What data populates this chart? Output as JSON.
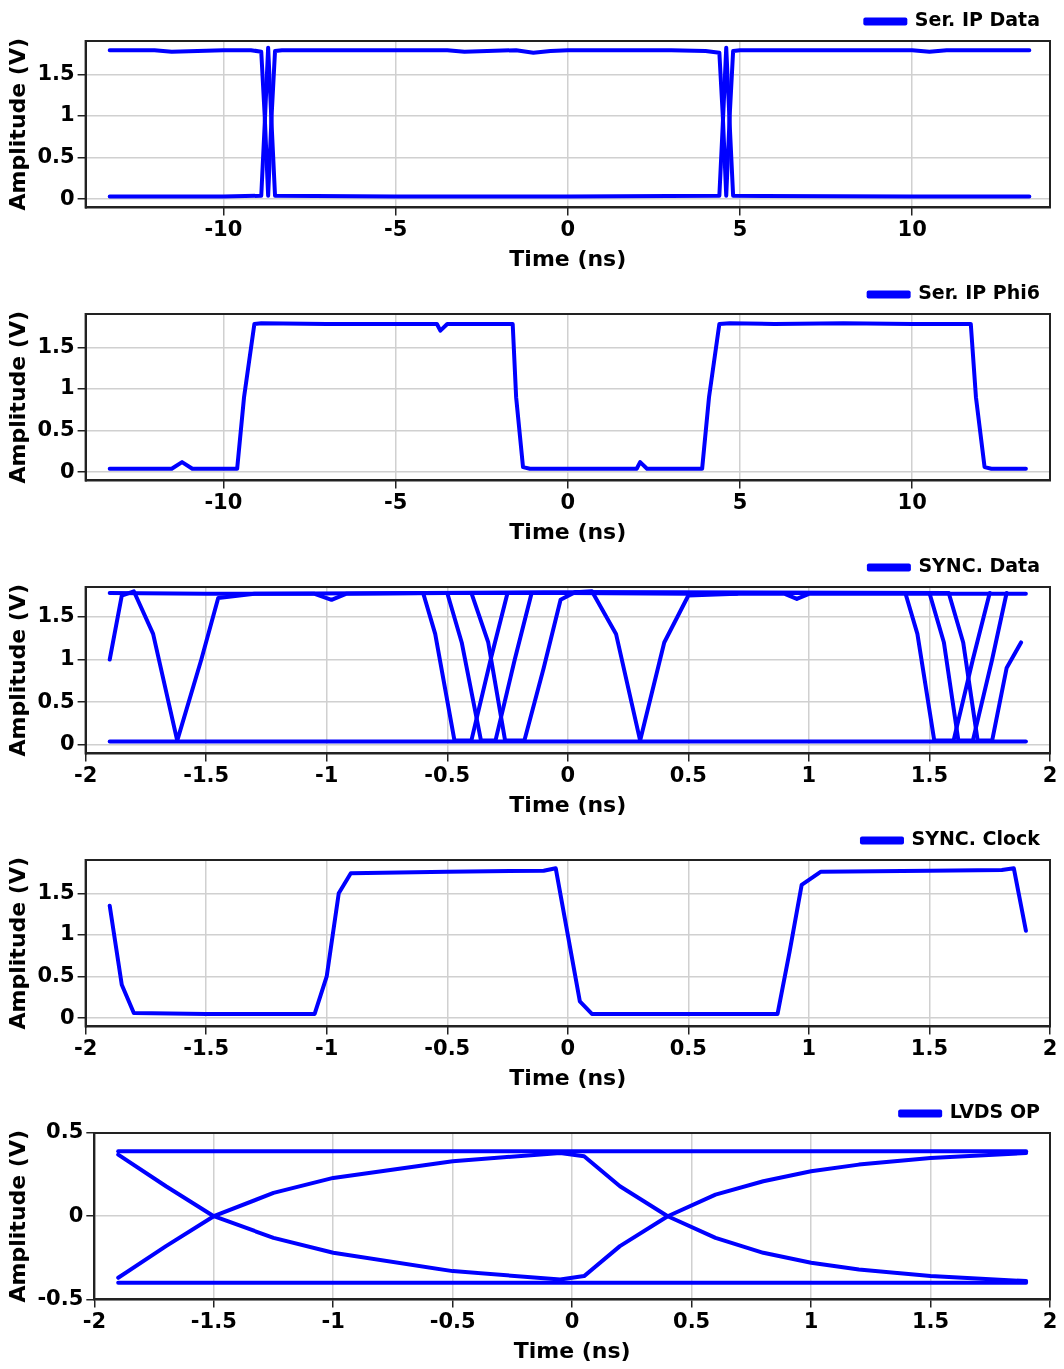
{
  "chart_data": [
    {
      "type": "line",
      "xlabel": "Time (ns)",
      "ylabel": "Amplitude (V)",
      "xlim": [
        -14,
        14
      ],
      "ylim": [
        -0.1,
        1.9
      ],
      "xticks": [
        -10,
        -5,
        0,
        5,
        10
      ],
      "yticks": [
        0,
        0.5,
        1,
        1.5
      ],
      "grid": true,
      "legend": "top right",
      "marker": "none",
      "line_style": "solid",
      "series": [
        {
          "name": "Ser. IP Data",
          "color": "#0000ff",
          "x": [
            -13.3,
            -12,
            -11.5,
            -10,
            -9.2,
            -8.9,
            -8.8,
            -8.7,
            -8.6,
            -8.5,
            -8.3,
            -5,
            -3.5,
            -3,
            -1.5,
            -1,
            -0.5,
            0,
            2,
            3,
            4,
            4.4,
            4.5,
            4.6,
            4.7,
            4.8,
            5,
            8,
            10,
            10.5,
            11,
            13.4
          ],
          "values": [
            1.79,
            1.79,
            1.77,
            1.79,
            1.79,
            1.77,
            1.0,
            0.04,
            1.0,
            1.78,
            1.79,
            1.79,
            1.79,
            1.77,
            1.79,
            1.76,
            1.78,
            1.79,
            1.79,
            1.79,
            1.78,
            1.76,
            1.0,
            0.04,
            1.0,
            1.78,
            1.79,
            1.79,
            1.79,
            1.77,
            1.79,
            1.79
          ]
        },
        {
          "color": "#0000ff",
          "x": [
            -13.3,
            -10,
            -8.9,
            -8.8,
            -8.7,
            -8.6,
            -8.5,
            -5,
            0,
            4.4,
            4.5,
            4.6,
            4.7,
            4.8,
            10,
            13.4
          ],
          "values": [
            0.03,
            0.03,
            0.04,
            0.9,
            1.82,
            0.9,
            0.04,
            0.03,
            0.03,
            0.04,
            0.9,
            1.82,
            0.9,
            0.04,
            0.03,
            0.03
          ]
        }
      ]
    },
    {
      "type": "line",
      "xlabel": "Time (ns)",
      "ylabel": "Amplitude (V)",
      "xlim": [
        -14,
        14
      ],
      "ylim": [
        -0.1,
        1.9
      ],
      "xticks": [
        -10,
        -5,
        0,
        5,
        10
      ],
      "yticks": [
        0,
        0.5,
        1,
        1.5
      ],
      "grid": true,
      "legend": "top right",
      "marker": "none",
      "line_style": "solid",
      "series": [
        {
          "name": "Ser. IP Phi6",
          "color": "#0000ff",
          "x": [
            -13.3,
            -11.5,
            -11.2,
            -10.9,
            -9.6,
            -9.4,
            -9.1,
            -8.9,
            -7,
            -5,
            -3.8,
            -3.7,
            -3.5,
            -1.6,
            -1.5,
            -1.3,
            -1.1,
            0,
            2,
            2.1,
            2.3,
            3.9,
            4.1,
            4.4,
            4.7,
            6,
            8,
            10,
            11.7,
            11.85,
            12.1,
            12.3,
            13.3
          ],
          "values": [
            0.04,
            0.04,
            0.12,
            0.04,
            0.04,
            0.9,
            1.78,
            1.79,
            1.78,
            1.78,
            1.78,
            1.7,
            1.78,
            1.78,
            0.9,
            0.06,
            0.04,
            0.04,
            0.04,
            0.12,
            0.04,
            0.04,
            0.9,
            1.78,
            1.79,
            1.78,
            1.79,
            1.78,
            1.78,
            0.9,
            0.06,
            0.04,
            0.04
          ]
        }
      ]
    },
    {
      "type": "line",
      "xlabel": "Time (ns)",
      "ylabel": "Amplitude (V)",
      "xlim": [
        -2,
        2
      ],
      "ylim": [
        -0.1,
        1.85
      ],
      "xticks": [
        -2,
        -1.5,
        -1,
        -0.5,
        0,
        0.5,
        1,
        1.5,
        2
      ],
      "yticks": [
        0,
        0.5,
        1,
        1.5
      ],
      "grid": true,
      "legend": "top right",
      "marker": "none",
      "line_style": "solid",
      "series": [
        {
          "name": "SYNC. Data",
          "color": "#0000ff",
          "x": [
            -1.9,
            -1.5,
            -1.05,
            -0.98,
            -0.92,
            -0.5,
            0,
            0.5,
            0.9,
            0.95,
            1.0,
            1.9
          ],
          "values": [
            1.78,
            1.77,
            1.77,
            1.7,
            1.77,
            1.78,
            1.78,
            1.77,
            1.77,
            1.71,
            1.77,
            1.77
          ]
        },
        {
          "color": "#0000ff",
          "x": [
            -1.9,
            -1,
            0,
            1,
            1.9
          ],
          "values": [
            0.04,
            0.04,
            0.04,
            0.04,
            0.04
          ]
        },
        {
          "color": "#0000ff",
          "x": [
            -1.9,
            -1.85,
            -1.8,
            -1.72,
            -1.62,
            -1.52,
            -1.45,
            -1.3,
            -0.6,
            0.05,
            0.1,
            0.2,
            0.3,
            0.4,
            0.5,
            0.7
          ],
          "values": [
            1.0,
            1.75,
            1.8,
            1.3,
            0.05,
            1.0,
            1.72,
            1.77,
            1.78,
            1.79,
            1.8,
            1.3,
            0.05,
            1.2,
            1.75,
            1.77
          ]
        },
        {
          "color": "#0000ff",
          "x": [
            -0.6,
            -0.55,
            -0.47,
            -0.4,
            -0.32,
            -0.25,
            1.4,
            1.45,
            1.52,
            1.6,
            1.68,
            1.75
          ],
          "values": [
            1.78,
            1.3,
            0.05,
            0.05,
            1.0,
            1.78,
            1.78,
            1.3,
            0.05,
            0.05,
            1.0,
            1.78
          ]
        },
        {
          "color": "#0000ff",
          "x": [
            -0.5,
            -0.44,
            -0.36,
            -0.3,
            -0.22,
            -0.15,
            1.5,
            1.56,
            1.62,
            1.68,
            1.76,
            1.82
          ],
          "values": [
            1.78,
            1.2,
            0.05,
            0.05,
            1.0,
            1.78,
            1.78,
            1.2,
            0.05,
            0.05,
            1.0,
            1.78
          ]
        },
        {
          "color": "#0000ff",
          "x": [
            -0.4,
            -0.33,
            -0.26,
            -0.18,
            -0.1,
            -0.03,
            0.03,
            1.58,
            1.64,
            1.7,
            1.76,
            1.82,
            1.88
          ],
          "values": [
            1.78,
            1.2,
            0.05,
            0.05,
            0.9,
            1.7,
            1.79,
            1.78,
            1.2,
            0.05,
            0.05,
            0.9,
            1.2
          ]
        }
      ]
    },
    {
      "type": "line",
      "xlabel": "Time (ns)",
      "ylabel": "Amplitude (V)",
      "xlim": [
        -2,
        2
      ],
      "ylim": [
        -0.1,
        1.9
      ],
      "xticks": [
        -2,
        -1.5,
        -1,
        -0.5,
        0,
        0.5,
        1,
        1.5,
        2
      ],
      "yticks": [
        0,
        0.5,
        1,
        1.5
      ],
      "grid": true,
      "legend": "top right",
      "marker": "none",
      "line_style": "solid",
      "series": [
        {
          "name": "SYNC. Clock",
          "color": "#0000ff",
          "x": [
            -1.9,
            -1.85,
            -1.8,
            -1.5,
            -1.05,
            -1.0,
            -0.95,
            -0.9,
            -0.5,
            -0.1,
            -0.05,
            0.0,
            0.05,
            0.1,
            0.5,
            0.87,
            0.92,
            0.97,
            1.05,
            1.5,
            1.8,
            1.85,
            1.9
          ],
          "values": [
            1.35,
            0.4,
            0.06,
            0.05,
            0.05,
            0.5,
            1.5,
            1.74,
            1.76,
            1.77,
            1.8,
            1.0,
            0.2,
            0.05,
            0.05,
            0.05,
            0.8,
            1.6,
            1.76,
            1.77,
            1.78,
            1.8,
            1.05
          ]
        }
      ]
    },
    {
      "type": "line",
      "xlabel": "Time (ns)",
      "ylabel": "Amplitude (V)",
      "xlim": [
        -2,
        2
      ],
      "ylim": [
        -0.5,
        0.5
      ],
      "xticks": [
        -2,
        -1.5,
        -1,
        -0.5,
        0,
        0.5,
        1,
        1.5,
        2
      ],
      "yticks": [
        -0.5,
        0,
        0.5
      ],
      "grid": true,
      "legend": "top right",
      "marker": "none",
      "line_style": "solid",
      "series": [
        {
          "name": "LVDS OP",
          "color": "#0000ff",
          "x": [
            -1.9,
            0,
            1.9
          ],
          "values": [
            0.39,
            0.39,
            0.39
          ]
        },
        {
          "color": "#0000ff",
          "x": [
            -1.9,
            0,
            1.9
          ],
          "values": [
            -0.4,
            -0.4,
            -0.4
          ]
        },
        {
          "color": "#0000ff",
          "x": [
            -1.9,
            -1.7,
            -1.5,
            -1.25,
            -1,
            -0.5,
            -0.05,
            0.05,
            0.2,
            0.4,
            0.6,
            0.8,
            1.0,
            1.2,
            1.5,
            1.9
          ],
          "values": [
            0.37,
            0.18,
            0.0,
            -0.13,
            -0.22,
            -0.33,
            -0.38,
            -0.36,
            -0.18,
            0.0,
            0.13,
            0.21,
            0.27,
            0.31,
            0.35,
            0.38
          ]
        },
        {
          "color": "#0000ff",
          "x": [
            -1.9,
            -1.7,
            -1.5,
            -1.25,
            -1,
            -0.5,
            -0.05,
            0.05,
            0.2,
            0.4,
            0.6,
            0.8,
            1.0,
            1.2,
            1.5,
            1.9
          ],
          "values": [
            -0.37,
            -0.18,
            0.0,
            0.14,
            0.23,
            0.33,
            0.38,
            0.36,
            0.18,
            0.0,
            -0.13,
            -0.22,
            -0.28,
            -0.32,
            -0.36,
            -0.39
          ]
        }
      ]
    }
  ]
}
